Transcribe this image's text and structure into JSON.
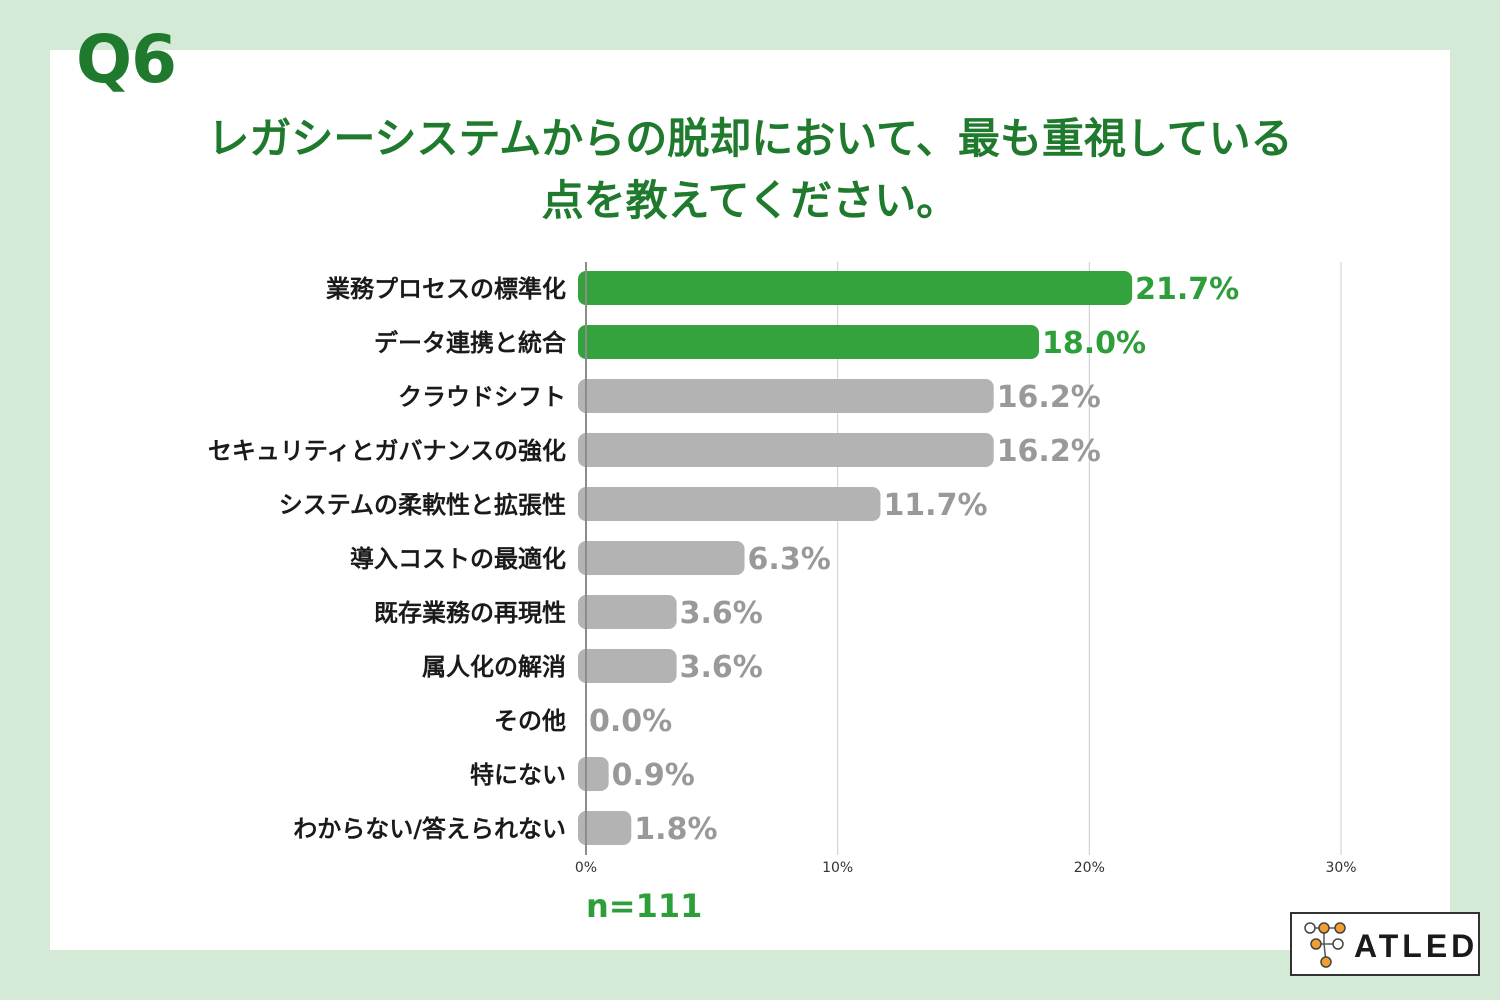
{
  "question": {
    "number": "Q6"
  },
  "chart_data": {
    "type": "bar",
    "orientation": "horizontal",
    "title_lines": [
      "レガシーシステムからの脱却において、最も重視している",
      "点を教えてください。"
    ],
    "categories": [
      "業務プロセスの標準化",
      "データ連携と統合",
      "クラウドシフト",
      "セキュリティとガバナンスの強化",
      "システムの柔軟性と拡張性",
      "導入コストの最適化",
      "既存業務の再現性",
      "属人化の解消",
      "その他",
      "特にない",
      "わからない/答えられない"
    ],
    "values": [
      21.7,
      18.0,
      16.2,
      16.2,
      11.7,
      6.3,
      3.6,
      3.6,
      0.0,
      0.9,
      1.8
    ],
    "value_labels": [
      "21.7%",
      "18.0%",
      "16.2%",
      "16.2%",
      "11.7%",
      "6.3%",
      "3.6%",
      "3.6%",
      "0.0%",
      "0.9%",
      "1.8%"
    ],
    "highlight_count": 2,
    "xlim": [
      0,
      30
    ],
    "xticks": [
      0,
      10,
      20,
      30
    ],
    "xtick_labels": [
      "0%",
      "10%",
      "20%",
      "30%"
    ],
    "grid": true,
    "sample_size": "n=111",
    "colors": {
      "highlight": "#35a33d",
      "highlight_text": "#2e9e3a",
      "normal": "#b3b3b3",
      "normal_text": "#999999",
      "title": "#1f7a2e",
      "background": "#d4ead6"
    }
  },
  "logo": {
    "text": "ATLED"
  }
}
